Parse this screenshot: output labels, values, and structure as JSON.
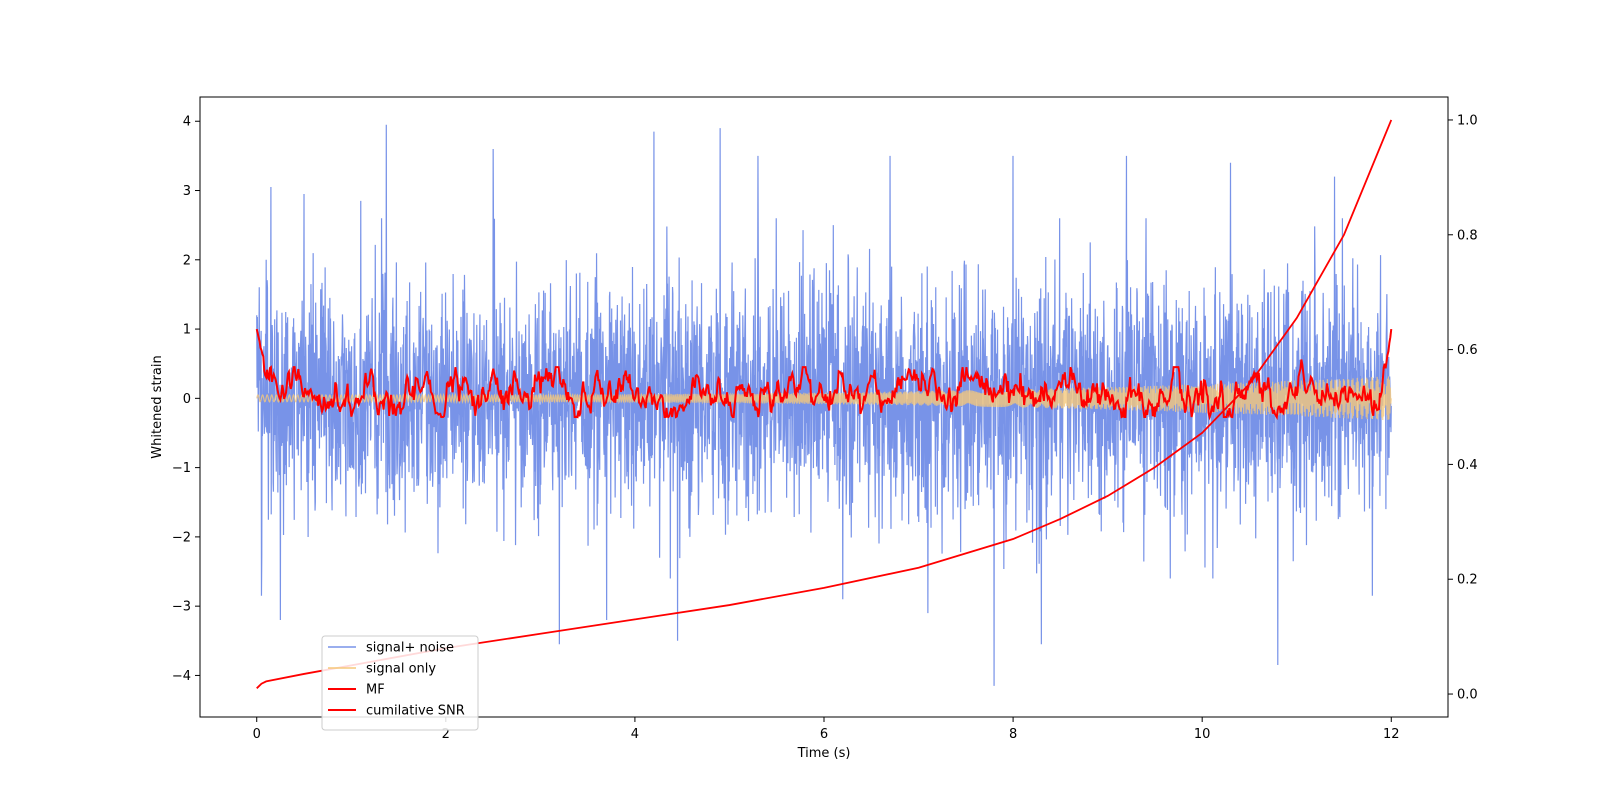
{
  "chart_data": {
    "type": "line",
    "xlabel": "Time (s)",
    "ylabel": "Whitened strain",
    "y2label": "",
    "xlim": [
      -0.6,
      12.6
    ],
    "ylim": [
      -4.6,
      4.35
    ],
    "y2lim": [
      -0.04,
      1.04
    ],
    "xticks": [
      0,
      2,
      4,
      6,
      8,
      10,
      12
    ],
    "xtick_labels": [
      "0",
      "2",
      "4",
      "6",
      "8",
      "10",
      "12"
    ],
    "yticks": [
      -4,
      -3,
      -2,
      -1,
      0,
      1,
      2,
      3,
      4
    ],
    "ytick_labels": [
      "−4",
      "−3",
      "−2",
      "−1",
      "0",
      "1",
      "2",
      "3",
      "4"
    ],
    "y2ticks": [
      0.0,
      0.2,
      0.4,
      0.6,
      0.8,
      1.0
    ],
    "y2tick_labels": [
      "0.0",
      "0.2",
      "0.4",
      "0.6",
      "0.8",
      "1.0"
    ],
    "grid": false,
    "legend_position": "lower-left",
    "series": [
      {
        "name": "signal+ noise",
        "color": "#7893e8",
        "axis": "left",
        "kind": "noise",
        "x_range": [
          0,
          12
        ],
        "typical_range": [
          -2.0,
          2.0
        ],
        "peaks": [
          {
            "x": 0.05,
            "y": -2.85
          },
          {
            "x": 0.1,
            "y": 2.0
          },
          {
            "x": 0.15,
            "y": 3.05
          },
          {
            "x": 0.25,
            "y": -3.2
          },
          {
            "x": 0.5,
            "y": 2.95
          },
          {
            "x": 1.1,
            "y": 2.85
          },
          {
            "x": 1.37,
            "y": 3.95
          },
          {
            "x": 2.5,
            "y": 3.6
          },
          {
            "x": 3.2,
            "y": -3.55
          },
          {
            "x": 3.7,
            "y": -3.2
          },
          {
            "x": 4.2,
            "y": 3.85
          },
          {
            "x": 4.45,
            "y": -3.5
          },
          {
            "x": 4.9,
            "y": 3.9
          },
          {
            "x": 5.3,
            "y": 3.5
          },
          {
            "x": 6.2,
            "y": -2.9
          },
          {
            "x": 6.7,
            "y": 3.5
          },
          {
            "x": 7.1,
            "y": -3.1
          },
          {
            "x": 7.8,
            "y": -4.15
          },
          {
            "x": 8.0,
            "y": 3.5
          },
          {
            "x": 8.3,
            "y": -3.55
          },
          {
            "x": 9.2,
            "y": 3.5
          },
          {
            "x": 10.3,
            "y": 3.4
          },
          {
            "x": 10.8,
            "y": -3.85
          },
          {
            "x": 11.4,
            "y": 3.2
          },
          {
            "x": 11.8,
            "y": -2.85
          }
        ]
      },
      {
        "name": "signal only",
        "color": "#f5c87a",
        "axis": "left",
        "kind": "chirp",
        "x_range": [
          0,
          12
        ],
        "amplitude_start": 0.05,
        "amplitude_end": 0.32
      },
      {
        "name": "MF",
        "color": "#ff0000",
        "axis": "left",
        "kind": "filter",
        "x_range": [
          0,
          12
        ],
        "start_value": 1.0,
        "baseline_range": [
          -0.27,
          0.45
        ],
        "peak_points": [
          {
            "x": 1.8,
            "y": 0.4
          },
          {
            "x": 2.5,
            "y": 0.45
          },
          {
            "x": 3.6,
            "y": 0.45
          },
          {
            "x": 6.5,
            "y": 0.33
          },
          {
            "x": 6.9,
            "y": 0.45
          },
          {
            "x": 7.15,
            "y": 0.45
          },
          {
            "x": 11.05,
            "y": 0.57
          }
        ],
        "end_value": 1.0
      },
      {
        "name": "cumilative SNR",
        "color": "#ff0000",
        "axis": "right",
        "kind": "curve",
        "x": [
          0,
          0.05,
          0.1,
          0.5,
          1.0,
          2.0,
          3.0,
          4.0,
          5.0,
          6.0,
          7.0,
          8.0,
          8.5,
          9.0,
          9.5,
          10.0,
          10.5,
          11.0,
          11.5,
          12.0
        ],
        "y": [
          0.01,
          0.018,
          0.022,
          0.035,
          0.05,
          0.08,
          0.105,
          0.13,
          0.155,
          0.185,
          0.22,
          0.27,
          0.305,
          0.345,
          0.395,
          0.455,
          0.54,
          0.655,
          0.8,
          1.0
        ]
      }
    ]
  }
}
